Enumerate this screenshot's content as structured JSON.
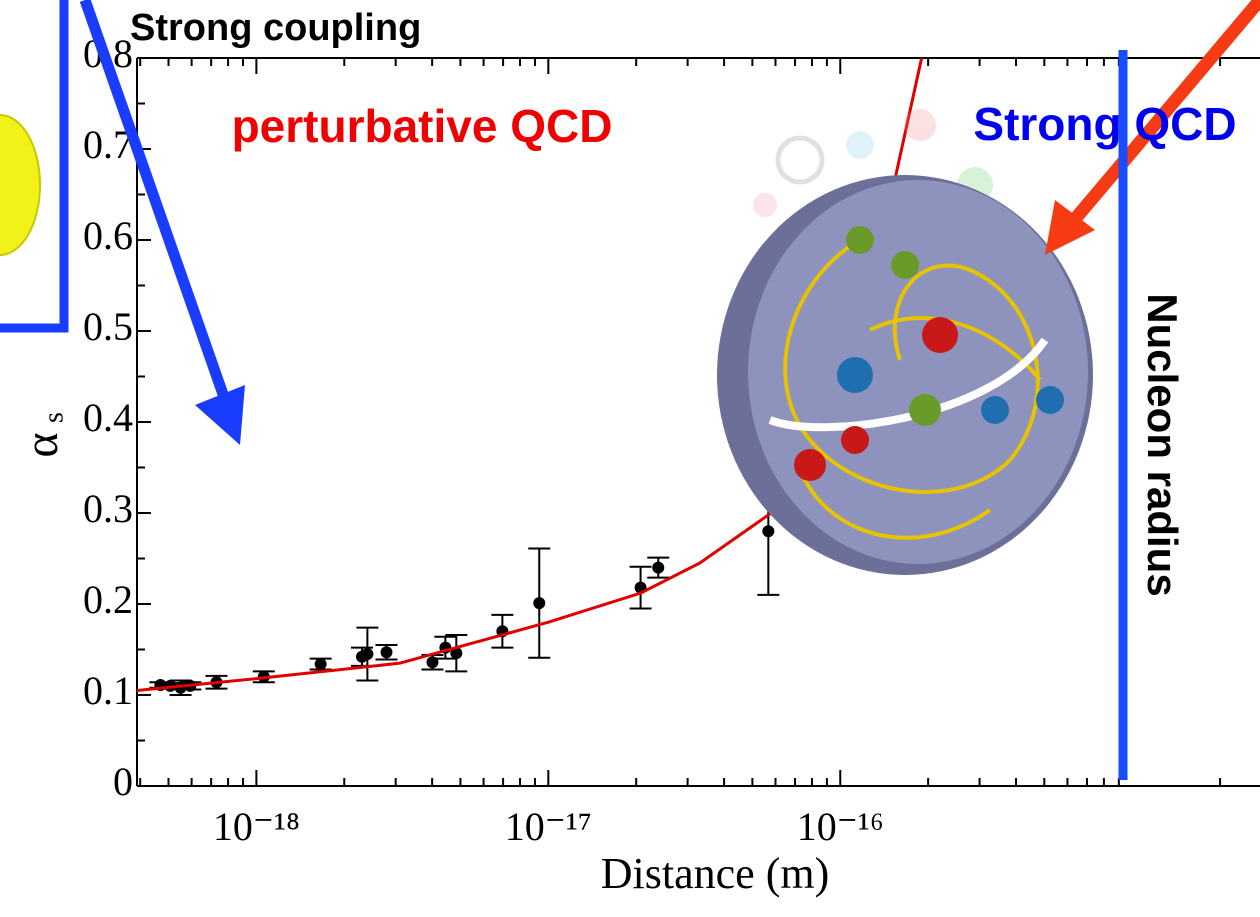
{
  "chart_data": {
    "type": "scatter",
    "title": "Strong coupling",
    "x_label": "Distance (m)",
    "y_label": "α",
    "y_label_subscript": "s",
    "log_x": true,
    "xlim": [
      3.9e-19,
      2.74e-15
    ],
    "ylim": [
      0,
      0.8
    ],
    "xticks": [
      {
        "value": 1e-18,
        "label": "10⁻¹⁸"
      },
      {
        "value": 1e-17,
        "label": "10⁻¹⁷"
      },
      {
        "value": 1e-16,
        "label": "10⁻¹⁶"
      }
    ],
    "yticks": [
      0,
      0.1,
      0.2,
      0.3,
      0.4,
      0.5,
      0.6,
      0.7,
      0.8
    ],
    "series": [
      {
        "type": "scatter",
        "color": "#000000",
        "x": [
          4.69e-19,
          5.07e-19,
          5.5e-19,
          5.94e-19,
          7.3e-19,
          1.06e-18,
          1.66e-18,
          2.3e-18,
          2.4e-18,
          2.79e-18,
          4.01e-18,
          4.44e-18,
          4.84e-18,
          6.96e-18,
          9.31e-18,
          2.07e-17,
          2.38e-17,
          5.67e-17
        ],
        "values": [
          0.111,
          0.11,
          0.108,
          0.11,
          0.114,
          0.12,
          0.134,
          0.142,
          0.145,
          0.147,
          0.136,
          0.152,
          0.146,
          0.17,
          0.201,
          0.218,
          0.24,
          0.28
        ],
        "errors": [
          0.003,
          0.003,
          0.008,
          0.004,
          0.007,
          0.006,
          0.006,
          0.01,
          0.029,
          0.008,
          0.008,
          0.012,
          0.02,
          0.018,
          0.06,
          0.023,
          0.011,
          0.07
        ]
      },
      {
        "type": "line",
        "color": "#e00000",
        "x": [
          3.9e-19,
          1e-18,
          3.1e-18,
          1e-17,
          2.07e-17,
          3.3e-17,
          5.8e-17,
          8.6e-17,
          1.28e-16,
          1.9e-16
        ],
        "values": [
          0.105,
          0.118,
          0.135,
          0.18,
          0.212,
          0.245,
          0.3,
          0.4,
          0.55,
          0.8
        ]
      }
    ],
    "annotations": [
      {
        "text": "perturbative QCD",
        "color": "#f00000"
      },
      {
        "text": "Strong QCD",
        "color": "#0000f0"
      },
      {
        "text": "Nucleon radius",
        "x": 9.3e-16,
        "color": "#1a4cff"
      }
    ]
  }
}
